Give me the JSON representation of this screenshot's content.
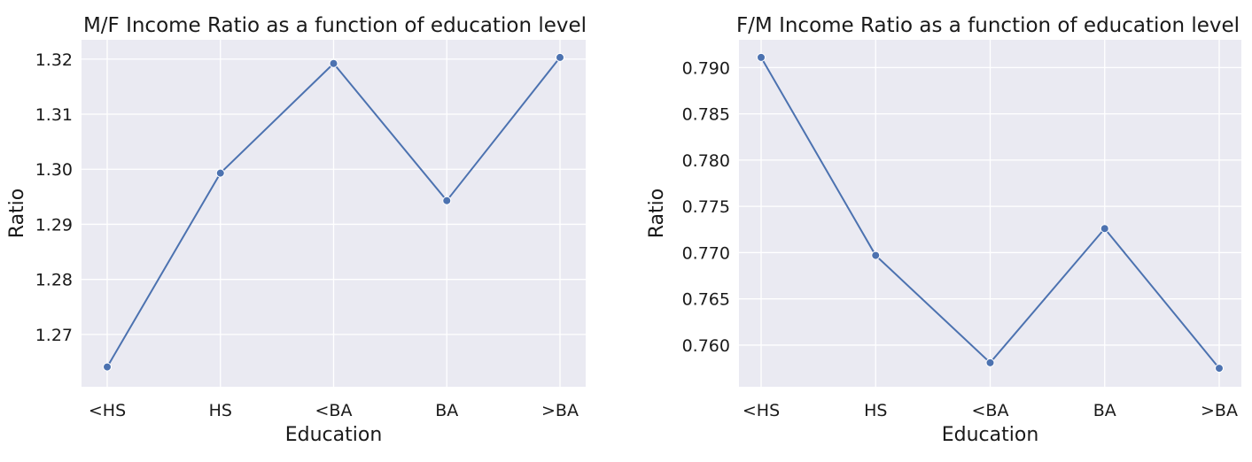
{
  "chart_data": [
    {
      "type": "line",
      "title": "M/F Income Ratio as a function of education level",
      "xlabel": "Education",
      "ylabel": "Ratio",
      "categories": [
        "<HS",
        "HS",
        "<BA",
        "BA",
        ">BA"
      ],
      "series": [
        {
          "values": [
            1.2641,
            1.2993,
            1.3192,
            1.2943,
            1.3203
          ]
        }
      ],
      "ylim": [
        1.2605,
        1.3235
      ],
      "yticks": [
        "1.27",
        "1.28",
        "1.29",
        "1.30",
        "1.31",
        "1.32"
      ],
      "ytick_values": [
        1.27,
        1.28,
        1.29,
        1.3,
        1.31,
        1.32
      ],
      "grid": true,
      "background_color": "#eaeaf2",
      "line_color": "#4c72b0"
    },
    {
      "type": "line",
      "title": "F/M Income Ratio as a function of education level",
      "xlabel": "Education",
      "ylabel": "Ratio",
      "categories": [
        "<HS",
        "HS",
        "<BA",
        "BA",
        ">BA"
      ],
      "series": [
        {
          "values": [
            0.7911,
            0.7697,
            0.7581,
            0.7726,
            0.7575
          ]
        }
      ],
      "ylim": [
        0.7555,
        0.793
      ],
      "yticks": [
        "0.760",
        "0.765",
        "0.770",
        "0.775",
        "0.780",
        "0.785",
        "0.790"
      ],
      "ytick_values": [
        0.76,
        0.765,
        0.77,
        0.775,
        0.78,
        0.785,
        0.79
      ],
      "grid": true,
      "background_color": "#eaeaf2",
      "line_color": "#4c72b0"
    }
  ]
}
